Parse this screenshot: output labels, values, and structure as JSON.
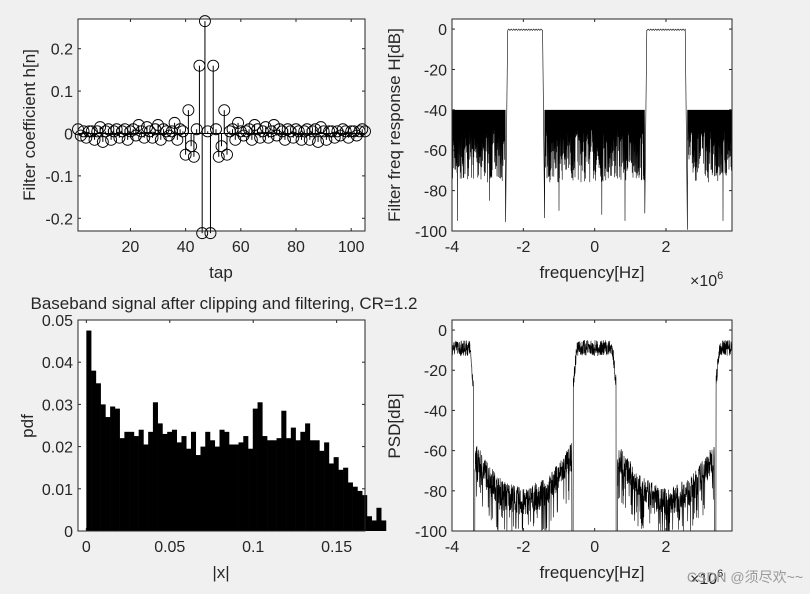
{
  "figure": {
    "background": "#f0f0f0",
    "axes_background": "#ffffff",
    "line_color": "#000000",
    "text_color": "#262626"
  },
  "watermark": "CSDN @须尽欢~~",
  "chart_data": [
    {
      "type": "stem",
      "id": "taps",
      "title": "",
      "xlabel": "tap",
      "ylabel": "Filter coefficient h[n]",
      "xlim": [
        1,
        105
      ],
      "ylim": [
        -0.23,
        0.27
      ],
      "xticks": [
        20,
        40,
        60,
        80,
        100
      ],
      "yticks": [
        -0.2,
        -0.1,
        0,
        0.1,
        0.2
      ],
      "xticklabels": [
        "20",
        "40",
        "60",
        "80",
        "100"
      ],
      "yticklabels": [
        "-0.2",
        "-0.1",
        "0",
        "0.1",
        "0.2"
      ],
      "marker": "circle",
      "x": [
        1,
        2,
        3,
        4,
        5,
        6,
        7,
        8,
        9,
        10,
        11,
        12,
        13,
        14,
        15,
        16,
        17,
        18,
        19,
        20,
        21,
        22,
        23,
        24,
        25,
        26,
        27,
        28,
        29,
        30,
        31,
        32,
        33,
        34,
        35,
        36,
        37,
        38,
        39,
        40,
        41,
        42,
        43,
        44,
        45,
        46,
        47,
        48,
        49,
        50,
        51,
        52,
        53,
        54,
        55,
        56,
        57,
        58,
        59,
        60,
        61,
        62,
        63,
        64,
        65,
        66,
        67,
        68,
        69,
        70,
        71,
        72,
        73,
        74,
        75,
        76,
        77,
        78,
        79,
        80,
        81,
        82,
        83,
        84,
        85,
        86,
        87,
        88,
        89,
        90,
        91,
        92,
        93,
        94,
        95,
        96,
        97,
        98,
        99,
        100,
        101,
        102,
        103,
        104,
        105
      ],
      "values": [
        0.01,
        -0.005,
        0.005,
        -0.01,
        0.005,
        0.005,
        -0.015,
        0.005,
        0.015,
        -0.02,
        0.005,
        0.01,
        -0.015,
        0.005,
        0.01,
        -0.01,
        0.005,
        0.01,
        -0.015,
        0.005,
        0.01,
        -0.005,
        0.02,
        0.005,
        -0.01,
        0.015,
        0.005,
        -0.01,
        0.01,
        0.02,
        -0.015,
        0.01,
        0.005,
        -0.005,
        0.005,
        0.025,
        -0.015,
        0.01,
        0.005,
        -0.05,
        0.055,
        -0.03,
        -0.055,
        0.01,
        0.16,
        -0.235,
        0.265,
        0.005,
        -0.235,
        0.16,
        0.01,
        -0.055,
        -0.03,
        0.055,
        -0.05,
        0.005,
        0.01,
        -0.015,
        0.025,
        0.005,
        -0.005,
        0.005,
        0.01,
        -0.015,
        0.02,
        0.01,
        -0.01,
        0.005,
        0.015,
        -0.01,
        0.005,
        0.02,
        -0.005,
        0.01,
        0.005,
        -0.015,
        0.01,
        0.005,
        -0.01,
        0.01,
        0.005,
        -0.015,
        0.005,
        0.01,
        -0.015,
        0.005,
        0.01,
        -0.02,
        0.015,
        0.005,
        -0.015,
        0.005,
        0.005,
        -0.01,
        0.005,
        -0.005,
        0.01,
        0.005,
        -0.01,
        0.005,
        0.005,
        -0.005,
        0.005,
        0.01,
        0.005
      ]
    },
    {
      "type": "line",
      "id": "freqresp",
      "title": "",
      "xlabel": "frequency[Hz]",
      "ylabel": "Filter freq response H[dB]",
      "x_exponent": "×10^6",
      "xlim": [
        -4,
        3.85
      ],
      "ylim": [
        -100,
        5
      ],
      "xticks": [
        -4,
        -2,
        0,
        2
      ],
      "yticks": [
        -100,
        -80,
        -60,
        -40,
        -20,
        0
      ],
      "xticklabels": [
        "-4",
        "-2",
        "0",
        "2"
      ],
      "yticklabels": [
        "-100",
        "-80",
        "-60",
        "-40",
        "-20",
        "0"
      ],
      "passbands_MHz": [
        [
          -2.5,
          -1.4
        ],
        [
          1.4,
          2.6
        ]
      ],
      "stopband_level_dB": -40,
      "passband_ripple_dB": [
        -1,
        0
      ],
      "deep_nulls_MHz": [
        [
          -3.85,
          -95
        ],
        [
          -2.95,
          -85
        ],
        [
          -1.0,
          -90
        ],
        [
          0.2,
          -92
        ],
        [
          0.85,
          -95
        ],
        [
          3.6,
          -95
        ]
      ]
    },
    {
      "type": "bar",
      "id": "pdf",
      "title": "Baseband signal after clipping and filtering, CR=1.2",
      "xlabel": "|x|",
      "ylabel": "pdf",
      "xlim": [
        -0.005,
        0.167
      ],
      "ylim": [
        0,
        0.05
      ],
      "xticks": [
        0,
        0.05,
        0.1,
        0.15
      ],
      "yticks": [
        0,
        0.01,
        0.02,
        0.03,
        0.04,
        0.05
      ],
      "xticklabels": [
        "0",
        "0.05",
        "0.1",
        "0.15"
      ],
      "yticklabels": [
        "0",
        "0.01",
        "0.02",
        "0.03",
        "0.04",
        "0.05"
      ],
      "bin_start": 0,
      "bin_width": 0.00285,
      "values": [
        0.0475,
        0.038,
        0.035,
        0.03,
        0.027,
        0.0295,
        0.029,
        0.022,
        0.0235,
        0.0235,
        0.0225,
        0.024,
        0.0205,
        0.0235,
        0.0305,
        0.0255,
        0.023,
        0.0235,
        0.024,
        0.021,
        0.0225,
        0.0195,
        0.0235,
        0.018,
        0.02,
        0.0235,
        0.0215,
        0.02,
        0.024,
        0.0235,
        0.0205,
        0.0205,
        0.021,
        0.0225,
        0.0195,
        0.029,
        0.0305,
        0.0225,
        0.0215,
        0.0215,
        0.022,
        0.0285,
        0.022,
        0.0245,
        0.0215,
        0.0235,
        0.0255,
        0.0215,
        0.0215,
        0.019,
        0.021,
        0.016,
        0.0175,
        0.0145,
        0.015,
        0.0115,
        0.0105,
        0.0095,
        0.0085,
        0.0035,
        0.0025,
        0.0055,
        0.0025
      ]
    },
    {
      "type": "line",
      "id": "psd",
      "title": "",
      "xlabel": "frequency[Hz]",
      "ylabel": "PSD[dB]",
      "x_exponent": "×10^6",
      "xlim": [
        -4,
        3.85
      ],
      "ylim": [
        -100,
        5
      ],
      "xticks": [
        -4,
        -2,
        0,
        2
      ],
      "yticks": [
        -100,
        -80,
        -60,
        -40,
        -20,
        0
      ],
      "xticklabels": [
        "-4",
        "-2",
        "0",
        "2"
      ],
      "yticklabels": [
        "-100",
        "-80",
        "-60",
        "-40",
        "-20",
        "0"
      ],
      "passband_segments_MHz": [
        [
          -4,
          -3.4
        ],
        [
          -0.6,
          0.6
        ],
        [
          3.4,
          3.85
        ]
      ],
      "passband_level_dB": -5,
      "floor_anchor_points": [
        [
          -3.4,
          -62
        ],
        [
          -2.7,
          -80
        ],
        [
          -2.0,
          -86
        ],
        [
          -1.3,
          -80
        ],
        [
          -0.6,
          -62
        ],
        [
          0.6,
          -62
        ],
        [
          1.3,
          -80
        ],
        [
          2.0,
          -86
        ],
        [
          2.7,
          -80
        ],
        [
          3.4,
          -62
        ]
      ]
    }
  ]
}
